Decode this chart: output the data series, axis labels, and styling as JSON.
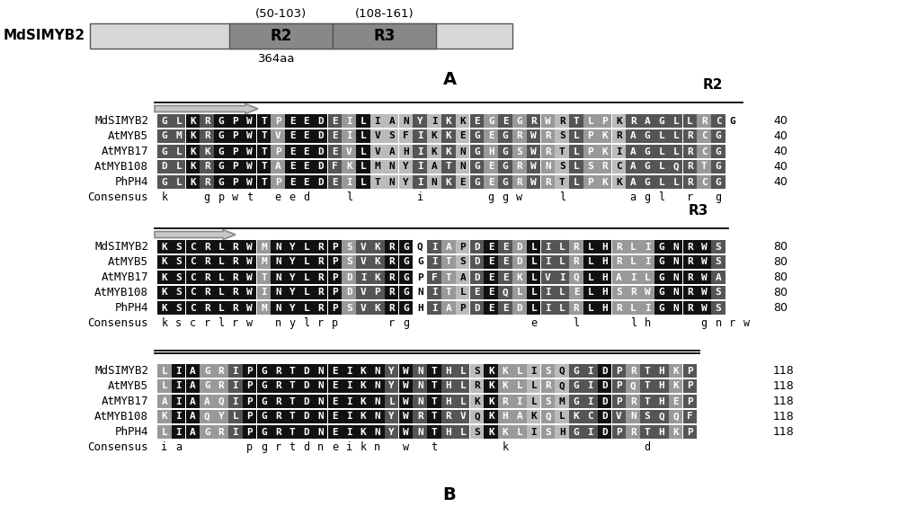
{
  "bg_color": "#ffffff",
  "protein_bar_color": "#d0d0d0",
  "domain_color": "#808080",
  "domain_r2_range": "(50-103)",
  "domain_r3_range": "(108-161)",
  "protein_length_label": "364aa",
  "section_a_label": "A",
  "section_b_label": "B",
  "r2_label": "R2",
  "r3_label": "R3",
  "mdsimyb2_label": "MdSIMYB2",
  "block1": {
    "names": [
      "MdSIMYB2",
      "AtMYB5",
      "AtMYB17",
      "AtMYB108",
      "PhPH4",
      "Consensus"
    ],
    "seqs": [
      "GLKRGPWTPEEDEILIANYIKKEGEGRWRTLPKRAGLLRCG",
      "GMKRGPWTVEEDEILVSFIKKEGEGRWRSLPKRAGLLRCG",
      "GLKKGPWTPEEDEVLVAHIKKNGHGSWRTLPKIAGLLRCG",
      "DLKRGPWTAEEDFKLMNYIATNGEGRWNSLSRCAGLQRTG",
      "GLKRGPWTPEEDEILTNYINKEGEGRWRTLPKKAGLLRCG",
      "k  gpwt eed  l    i    ggw  l    agl r g"
    ],
    "number": 40,
    "r_label": "R2"
  },
  "block2": {
    "names": [
      "MdSIMYB2",
      "AtMYB5",
      "AtMYB17",
      "AtMYB108",
      "PhPH4",
      "Consensus"
    ],
    "seqs": [
      "KSCRLRWMNYLRPSVKRGQIAPDEEDLILRLHRLIGNRWS",
      "KSCRLRWMNYLRPSVKRGGITSDEEDLILRLHRLIGNRWS",
      "KSCRLRWTNYLRPDIKRGPFTADEEKLVIQLHAILGNRWA",
      "KSCRLRWINYLRPDVPRGNITLEEQLLILELHSRWGNRWS",
      "KSCRLRWMNYLRPSVKRGHIAPDEEDLILRLHRLIGNRWS",
      "kscrlrw nylrp   rg        e  l   lh   gnrw"
    ],
    "number": 80,
    "r_label": "R3"
  },
  "block3": {
    "names": [
      "MdSIMYB2",
      "AtMYB5",
      "AtMYB17",
      "AtMYB108",
      "PhPH4",
      "Consensus"
    ],
    "seqs": [
      "LIAGRIPGRTDNEIKNYWNTHLSKKLISQGIDPRTHKP",
      "LIAGRIPGRTDNEIKNYWNTHLRKKLLRQGIDPQTHKP",
      "AIAAQIPGRTDNEIKNLWNTHLKKRILSMGIDPRTHEP",
      "KIAQYLPGRTDNEIKNYWRTRVQKHAKQLKCDVNSQQF",
      "LIAGRIPGRTDNEIKNYWNTHLSKKLISHGIDPRTHKP",
      "ia    pgrtdneikn w t    k         d"
    ],
    "number": 118,
    "r_label": null
  }
}
